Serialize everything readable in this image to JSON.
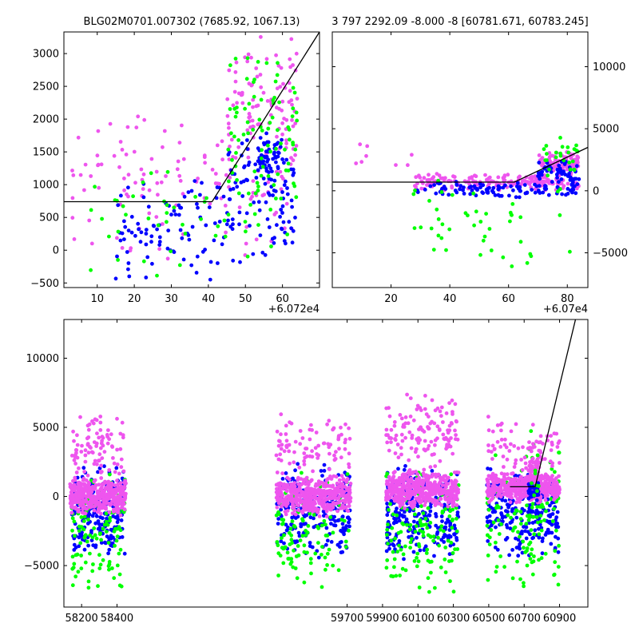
{
  "chart_data": [
    {
      "id": "top-left",
      "type": "scatter",
      "title": "BLG02M0701.007302 (7685.92, 1067.13)",
      "x_offset_label": "+6.072e4",
      "xlim": [
        1,
        70
      ],
      "ylim": [
        -570,
        3330
      ],
      "xticks": [
        10,
        20,
        30,
        40,
        50,
        60
      ],
      "yticks": [
        -500,
        0,
        500,
        1000,
        1500,
        2000,
        2500,
        3000
      ],
      "series_colors": [
        "#00ff00",
        "#0000ff",
        "#ee55ee"
      ],
      "model_line": [
        [
          1,
          740
        ],
        [
          41,
          740
        ],
        [
          70,
          3330
        ]
      ],
      "clusters": [
        {
          "series": 2,
          "x": [
            3,
            64
          ],
          "y": [
            -300,
            2500
          ],
          "n": 140
        },
        {
          "series": 2,
          "x": [
            45,
            64
          ],
          "y": [
            1200,
            3300
          ],
          "n": 90
        },
        {
          "series": 1,
          "x": [
            15,
            45
          ],
          "y": [
            -500,
            1200
          ],
          "n": 90
        },
        {
          "series": 1,
          "x": [
            45,
            64
          ],
          "y": [
            -300,
            2000
          ],
          "n": 100
        },
        {
          "series": 1,
          "x": [
            53,
            60
          ],
          "y": [
            1000,
            1800
          ],
          "n": 50
        },
        {
          "series": 0,
          "x": [
            8,
            64
          ],
          "y": [
            -500,
            1500
          ],
          "n": 50
        },
        {
          "series": 0,
          "x": [
            45,
            64
          ],
          "y": [
            500,
            3200
          ],
          "n": 80
        }
      ]
    },
    {
      "id": "top-right",
      "type": "scatter",
      "title": "3 797 2292.09 -8.000 -8 [60781.671, 60783.245]",
      "x_offset_label": "+6.07e4",
      "xlim": [
        0,
        87
      ],
      "ylim": [
        -7800,
        12800
      ],
      "xticks": [
        20,
        40,
        60,
        80
      ],
      "yticks": [
        -5000,
        0,
        5000,
        10000
      ],
      "series_colors": [
        "#00ff00",
        "#0000ff",
        "#ee55ee"
      ],
      "model_line": [
        [
          0,
          700
        ],
        [
          62,
          700
        ],
        [
          87,
          3500
        ]
      ],
      "clusters": [
        {
          "series": 2,
          "x": [
            28,
            84
          ],
          "y": [
            0,
            1400
          ],
          "n": 200
        },
        {
          "series": 2,
          "x": [
            70,
            84
          ],
          "y": [
            1200,
            3200
          ],
          "n": 90
        },
        {
          "series": 1,
          "x": [
            28,
            84
          ],
          "y": [
            -600,
            800
          ],
          "n": 110
        },
        {
          "series": 1,
          "x": [
            70,
            84
          ],
          "y": [
            500,
            2500
          ],
          "n": 50
        },
        {
          "series": 0,
          "x": [
            26,
            84
          ],
          "y": [
            -7000,
            1500
          ],
          "n": 45
        },
        {
          "series": 0,
          "x": [
            72,
            84
          ],
          "y": [
            1000,
            4500
          ],
          "n": 25
        },
        {
          "series": 2,
          "x": [
            5,
            28
          ],
          "y": [
            1200,
            4500
          ],
          "n": 8
        }
      ]
    },
    {
      "id": "bottom",
      "type": "scatter",
      "title": "",
      "xlim": [
        58100,
        61060
      ],
      "ylim": [
        -8000,
        12800
      ],
      "xticks": [
        58200,
        58400,
        59700,
        59900,
        60100,
        60300,
        60500,
        60700,
        60900
      ],
      "yticks": [
        -5000,
        0,
        5000,
        10000
      ],
      "series_colors": [
        "#00ff00",
        "#0000ff",
        "#ee55ee"
      ],
      "model_line": [
        [
          60620,
          700
        ],
        [
          60762,
          700
        ],
        [
          60990,
          12800
        ]
      ],
      "clusters": [
        {
          "series": 1,
          "x": [
            58145,
            58445
          ],
          "y": [
            -4500,
            2500
          ],
          "n": 220
        },
        {
          "series": 0,
          "x": [
            58145,
            58445
          ],
          "y": [
            -7500,
            2500
          ],
          "n": 110
        },
        {
          "series": 2,
          "x": [
            58135,
            58450
          ],
          "y": [
            -1500,
            1500
          ],
          "n": 380
        },
        {
          "series": 2,
          "x": [
            58145,
            58440
          ],
          "y": [
            1000,
            6000
          ],
          "n": 90
        },
        {
          "series": 1,
          "x": [
            59300,
            59720
          ],
          "y": [
            -4500,
            2500
          ],
          "n": 240
        },
        {
          "series": 0,
          "x": [
            59300,
            59720
          ],
          "y": [
            -7000,
            2500
          ],
          "n": 110
        },
        {
          "series": 2,
          "x": [
            59300,
            59720
          ],
          "y": [
            -1500,
            1500
          ],
          "n": 420
        },
        {
          "series": 2,
          "x": [
            59300,
            59720
          ],
          "y": [
            1000,
            6000
          ],
          "n": 90
        },
        {
          "series": 1,
          "x": [
            59920,
            60330
          ],
          "y": [
            -5000,
            2500
          ],
          "n": 260
        },
        {
          "series": 0,
          "x": [
            59920,
            60330
          ],
          "y": [
            -7500,
            2500
          ],
          "n": 140
        },
        {
          "series": 2,
          "x": [
            59920,
            60330
          ],
          "y": [
            -1000,
            2000
          ],
          "n": 440
        },
        {
          "series": 2,
          "x": [
            59920,
            60330
          ],
          "y": [
            1500,
            8000
          ],
          "n": 130
        },
        {
          "series": 1,
          "x": [
            60490,
            60900
          ],
          "y": [
            -4500,
            2500
          ],
          "n": 240
        },
        {
          "series": 0,
          "x": [
            60490,
            60900
          ],
          "y": [
            -7000,
            4000
          ],
          "n": 110
        },
        {
          "series": 2,
          "x": [
            60490,
            60900
          ],
          "y": [
            -500,
            1800
          ],
          "n": 420
        },
        {
          "series": 2,
          "x": [
            60490,
            60900
          ],
          "y": [
            1500,
            6000
          ],
          "n": 80
        },
        {
          "series": 2,
          "x": [
            60725,
            60785
          ],
          "y": [
            -400,
            2800
          ],
          "n": 90
        },
        {
          "series": 1,
          "x": [
            60725,
            60785
          ],
          "y": [
            -400,
            1200
          ],
          "n": 40
        },
        {
          "series": 0,
          "x": [
            60725,
            60785
          ],
          "y": [
            -7000,
            5000
          ],
          "n": 25
        }
      ]
    }
  ]
}
